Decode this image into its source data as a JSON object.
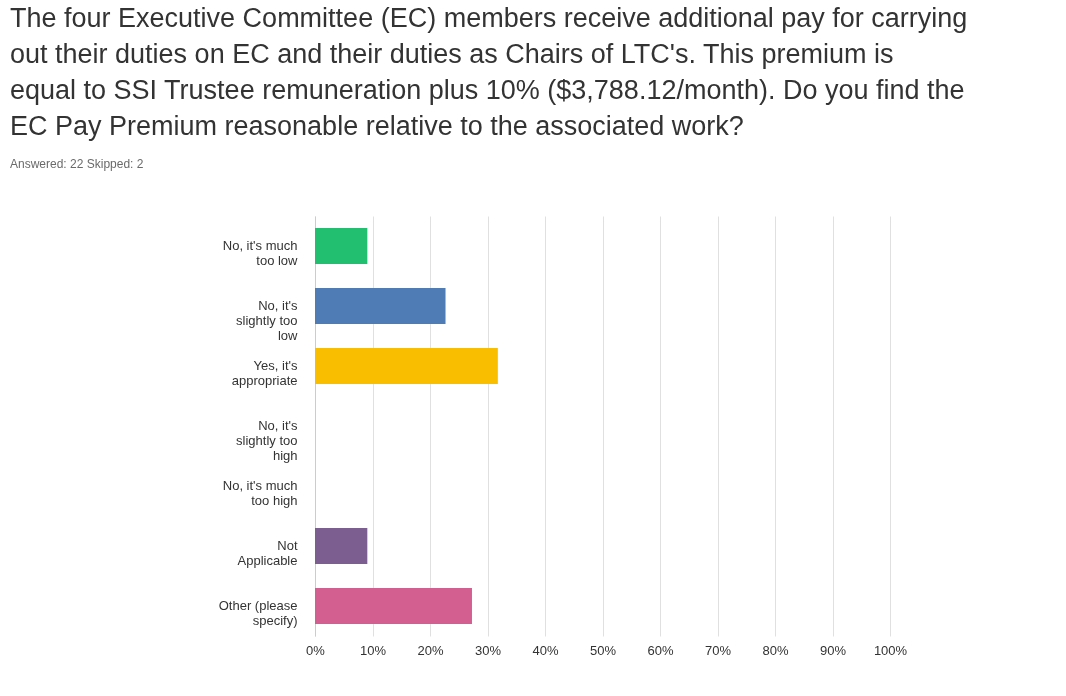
{
  "chart_data": {
    "type": "bar",
    "orientation": "horizontal",
    "title": "The four Executive Committee (EC) members receive additional pay for carrying out their duties on EC and their duties as Chairs of LTC's. This premium is equal to SSI Trustee remuneration plus 10% ($3,788.12/month). Do you find the EC Pay Premium reasonable relative to the associated work?",
    "subtitle": "Answered: 22    Skipped: 2",
    "categories": [
      "No, it's much too low",
      "No, it's slightly too low",
      "Yes, it's appropriate",
      "No, it's slightly too high",
      "No, it's much too high",
      "Not Applicable",
      "Other (please specify)"
    ],
    "values": [
      9.1,
      22.7,
      31.8,
      0,
      0,
      9.1,
      27.3
    ],
    "colors": [
      "#21bf6f",
      "#507cb6",
      "#f9be00",
      "#6f9fd8",
      "#a0a0a0",
      "#7d5e91",
      "#d25f90"
    ],
    "xlim": [
      0,
      100
    ],
    "xticks": [
      {
        "value": 0,
        "label": "0%"
      },
      {
        "value": 10,
        "label": "10%"
      },
      {
        "value": 20,
        "label": "20%"
      },
      {
        "value": 30,
        "label": "30%"
      },
      {
        "value": 40,
        "label": "40%"
      },
      {
        "value": 50,
        "label": "50%"
      },
      {
        "value": 60,
        "label": "60%"
      },
      {
        "value": 70,
        "label": "70%"
      },
      {
        "value": 80,
        "label": "80%"
      },
      {
        "value": 90,
        "label": "90%"
      },
      {
        "value": 100,
        "label": "100%"
      }
    ],
    "grid": "x"
  }
}
